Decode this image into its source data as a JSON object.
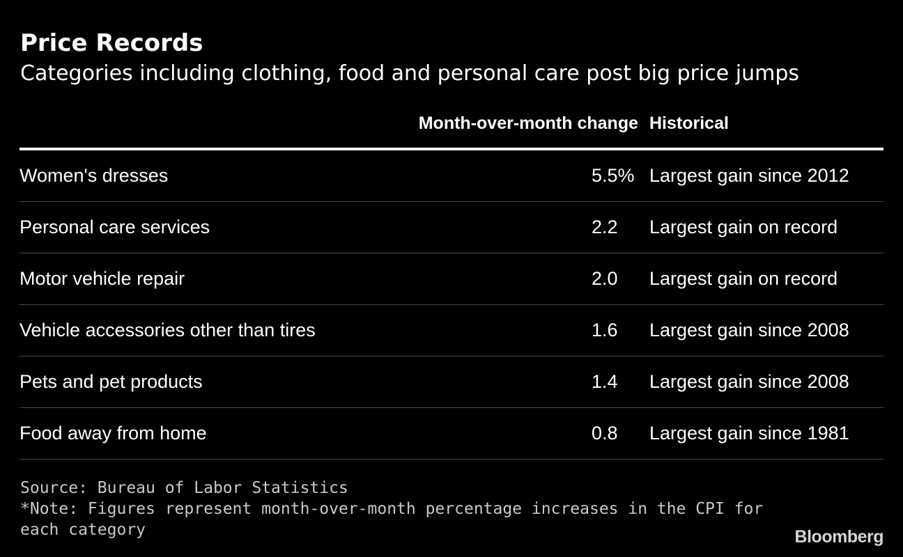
{
  "title": "Price Records",
  "subtitle": "Categories including clothing, food and personal care post big price jumps",
  "columns": {
    "change": "Month-over-month change",
    "historical": "Historical"
  },
  "chart_data": {
    "type": "table",
    "title": "Price Records",
    "subtitle": "Categories including clothing, food and personal care post big price jumps",
    "columns": [
      "",
      "Month-over-month change",
      "Historical"
    ],
    "rows": [
      {
        "category": "Women's dresses",
        "change": "5.5%",
        "value": 5.5,
        "historical": "Largest gain since 2012"
      },
      {
        "category": "Personal care services",
        "change": "2.2",
        "value": 2.2,
        "historical": "Largest gain on record"
      },
      {
        "category": "Motor vehicle repair",
        "change": "2.0",
        "value": 2.0,
        "historical": "Largest gain on record"
      },
      {
        "category": "Vehicle accessories other than tires",
        "change": "1.6",
        "value": 1.6,
        "historical": "Largest gain since 2008"
      },
      {
        "category": "Pets and pet products",
        "change": "1.4",
        "value": 1.4,
        "historical": "Largest gain since 2008"
      },
      {
        "category": "Food away from home",
        "change": "0.8",
        "value": 0.8,
        "historical": "Largest gain since 1981"
      }
    ]
  },
  "footer": {
    "source": "Source: Bureau of Labor Statistics",
    "note_line1": "*Note: Figures represent month-over-month percentage increases in the CPI for",
    "note_line2": "each category"
  },
  "logo": "Bloomberg",
  "colors": {
    "background": "#000000",
    "text": "#ffffff",
    "footnote": "#c8c8c8",
    "row_divider": "#4a4a4a"
  }
}
